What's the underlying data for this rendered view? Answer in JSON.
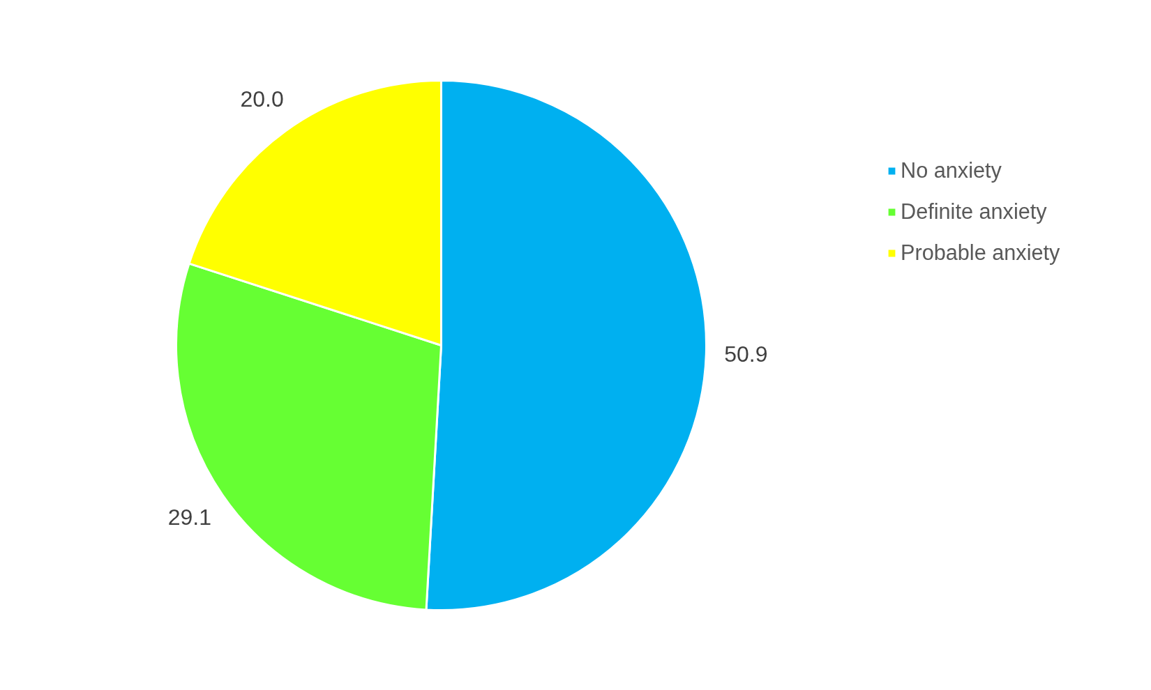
{
  "chart_data": {
    "type": "pie",
    "categories": [
      "No anxiety",
      "Definite anxiety",
      "Probable anxiety"
    ],
    "values": [
      50.9,
      29.1,
      20.0
    ],
    "colors": [
      "#00b0f0",
      "#66ff33",
      "#ffff00"
    ],
    "value_labels": [
      "50.9",
      "29.1",
      "20.0"
    ],
    "legend": "right"
  }
}
